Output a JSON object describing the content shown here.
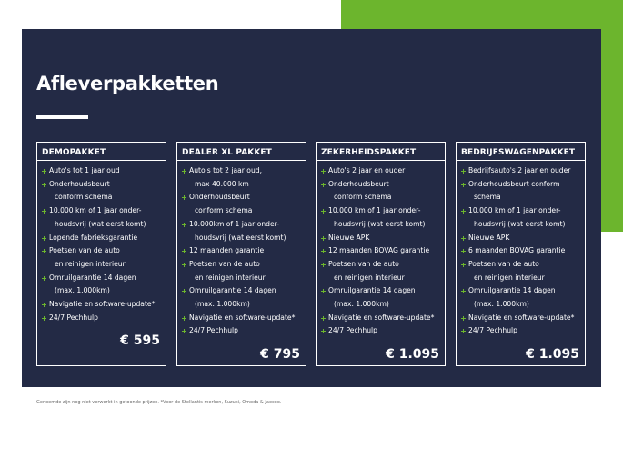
{
  "title": "Afleverpakketten",
  "packages": [
    {
      "name": "DEMOPAKKET",
      "price": "€ 595",
      "items": [
        [
          "Auto's tot 1 jaar oud"
        ],
        [
          "Onderhoudsbeurt",
          "conform schema"
        ],
        [
          "10.000 km of 1 jaar onder-",
          "houdsvrij (wat eerst komt)"
        ],
        [
          "Lopende fabrieksgarantie"
        ],
        [
          "Poetsen van de auto",
          "en reinigen interieur"
        ],
        [
          "Omruilgarantie 14 dagen",
          "(max. 1.000km)"
        ],
        [
          "Navigatie en software-update*"
        ],
        [
          "24/7 Pechhulp"
        ]
      ]
    },
    {
      "name": "DEALER XL PAKKET",
      "price": "€ 795",
      "items": [
        [
          "Auto's tot 2 jaar oud,",
          "max 40.000 km"
        ],
        [
          "Onderhoudsbeurt",
          "conform schema"
        ],
        [
          "10.000km of 1 jaar onder-",
          "houdsvrij (wat eerst komt)"
        ],
        [
          "12 maanden garantie"
        ],
        [
          "Poetsen van de auto",
          "en reinigen interieur"
        ],
        [
          "Omruilgarantie 14 dagen",
          "(max. 1.000km)"
        ],
        [
          "Navigatie en software-update*"
        ],
        [
          "24/7 Pechhulp"
        ]
      ]
    },
    {
      "name": "ZEKERHEIDSPAKKET",
      "price": "€ 1.095",
      "items": [
        [
          "Auto's 2 jaar en ouder"
        ],
        [
          "Onderhoudsbeurt",
          "conform schema"
        ],
        [
          "10.000 km of 1 jaar onder-",
          "houdsvrij (wat eerst komt)"
        ],
        [
          "Nieuwe APK"
        ],
        [
          "12 maanden BOVAG garantie"
        ],
        [
          "Poetsen van de auto",
          "en reinigen interieur"
        ],
        [
          "Omruilgarantie 14 dagen",
          "(max. 1.000km)"
        ],
        [
          "Navigatie en software-update*"
        ],
        [
          "24/7 Pechhulp"
        ]
      ]
    },
    {
      "name": "BEDRIJFSWAGENPAKKET",
      "price": "€ 1.095",
      "items": [
        [
          "Bedrijfsauto's 2 jaar en ouder"
        ],
        [
          "Onderhoudsbeurt conform",
          "schema"
        ],
        [
          "10.000 km of 1 jaar onder-",
          "houdsvrij (wat eerst komt)"
        ],
        [
          "Nieuwe APK"
        ],
        [
          "6 maanden BOVAG garantie"
        ],
        [
          "Poetsen van de auto",
          "en reinigen interieur"
        ],
        [
          "Omruilgarantie 14 dagen",
          "(max. 1.000km)"
        ],
        [
          "Navigatie en software-update*"
        ],
        [
          "24/7 Pechhulp"
        ]
      ]
    }
  ],
  "footnote": "Genoemde zijn nog niet verwerkt in getoonde prijzen. *Voor de Stellantis merken, Suzuki, Omoda & Jaecoo."
}
